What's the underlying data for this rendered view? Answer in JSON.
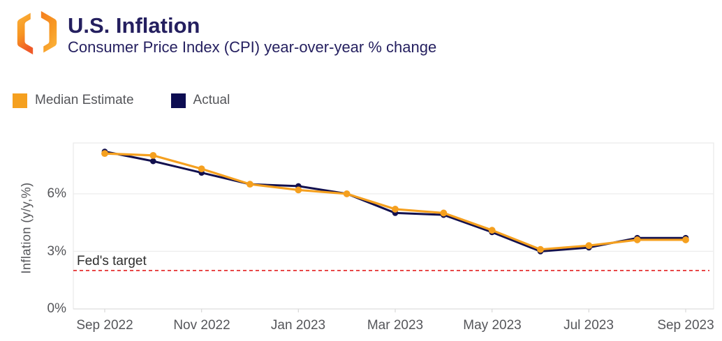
{
  "header": {
    "title": "U.S. Inflation",
    "subtitle": "Consumer Price Index (CPI) year-over-year % change"
  },
  "legend": [
    {
      "label": "Median Estimate",
      "color": "#f5a01f"
    },
    {
      "label": "Actual",
      "color": "#0d0d52"
    }
  ],
  "chart_data": {
    "type": "line",
    "title": "U.S. Inflation",
    "subtitle": "Consumer Price Index (CPI) year-over-year % change",
    "xlabel": "",
    "ylabel": "Inflation (y/y,%)",
    "categories": [
      "Sep 2022",
      "Oct 2022",
      "Nov 2022",
      "Dec 2022",
      "Jan 2023",
      "Feb 2023",
      "Mar 2023",
      "Apr 2023",
      "May 2023",
      "Jun 2023",
      "Jul 2023",
      "Aug 2023",
      "Sep 2023"
    ],
    "series": [
      {
        "name": "Median Estimate",
        "color": "#f5a01f",
        "values": [
          8.1,
          8.0,
          7.3,
          6.5,
          6.2,
          6.0,
          5.2,
          5.0,
          4.1,
          3.1,
          3.3,
          3.6,
          3.6
        ]
      },
      {
        "name": "Actual",
        "color": "#12104e",
        "values": [
          8.2,
          7.7,
          7.1,
          6.5,
          6.4,
          6.0,
          5.0,
          4.9,
          4.0,
          3.0,
          3.2,
          3.7,
          3.7
        ]
      }
    ],
    "reference_line": {
      "label": "Fed's target",
      "value": 2,
      "color": "#e31f1f",
      "style": "dashed"
    },
    "y_ticks": [
      "0%",
      "3%",
      "6%"
    ],
    "x_tick_labels": [
      "Sep 2022",
      "Nov 2022",
      "Jan 2023",
      "Mar 2023",
      "May 2023",
      "Jul 2023",
      "Sep 2023"
    ],
    "ylim": [
      0,
      8.65
    ],
    "grid": true,
    "legend_position": "top-left",
    "grid_color": "#ededed",
    "frame_color": "#e9e9e9"
  }
}
